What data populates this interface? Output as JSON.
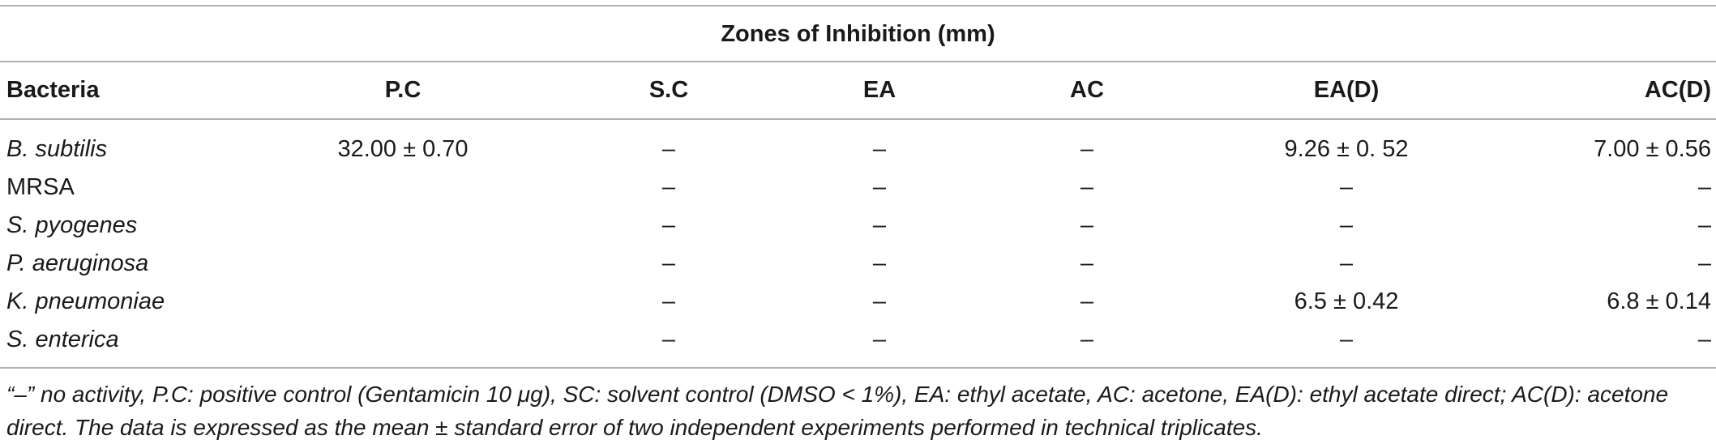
{
  "table": {
    "group_header": "Zones of Inhibition (mm)",
    "columns": [
      "Bacteria",
      "P.C",
      "S.C",
      "EA",
      "AC",
      "EA(D)",
      "AC(D)"
    ],
    "rows": [
      {
        "bacteria": "B. subtilis",
        "italic": true,
        "pc": "32.00 ± 0.70",
        "sc": "–",
        "ea": "–",
        "ac": "–",
        "ead": "9.26 ± 0. 52",
        "acd": "7.00 ± 0.56"
      },
      {
        "bacteria": "MRSA",
        "italic": false,
        "pc": "",
        "sc": "–",
        "ea": "–",
        "ac": "–",
        "ead": "–",
        "acd": "–"
      },
      {
        "bacteria": "S. pyogenes",
        "italic": true,
        "pc": "",
        "sc": "–",
        "ea": "–",
        "ac": "–",
        "ead": "–",
        "acd": "–"
      },
      {
        "bacteria": "P. aeruginosa",
        "italic": true,
        "pc": "",
        "sc": "–",
        "ea": "–",
        "ac": "–",
        "ead": "–",
        "acd": "–"
      },
      {
        "bacteria": "K. pneumoniae",
        "italic": true,
        "pc": "",
        "sc": "–",
        "ea": "–",
        "ac": "–",
        "ead": "6.5 ± 0.42",
        "acd": "6.8 ± 0.14"
      },
      {
        "bacteria": "S. enterica",
        "italic": true,
        "pc": "",
        "sc": "–",
        "ea": "–",
        "ac": "–",
        "ead": "–",
        "acd": "–"
      }
    ]
  },
  "footnote": {
    "line1": "“–” no activity, P.C: positive control (Gentamicin 10 μg), SC: solvent control (DMSO < 1%), EA: ethyl acetate, AC: acetone, EA(D): ethyl acetate direct; AC(D): acetone",
    "line2": "direct. The data is expressed as the mean ± standard error of two independent experiments performed in technical triplicates."
  }
}
